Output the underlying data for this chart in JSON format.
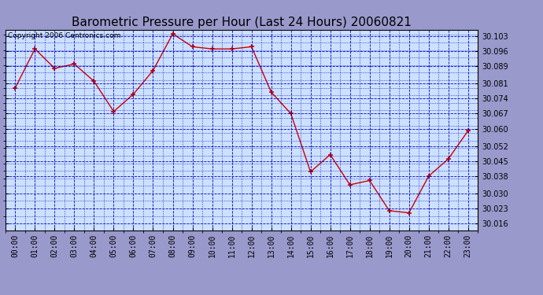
{
  "title": "Barometric Pressure per Hour (Last 24 Hours) 20060821",
  "copyright": "Copyright 2006 Centronics.com",
  "x_labels": [
    "00:00",
    "01:00",
    "02:00",
    "03:00",
    "04:00",
    "05:00",
    "06:00",
    "07:00",
    "08:00",
    "09:00",
    "10:00",
    "11:00",
    "12:00",
    "13:00",
    "14:00",
    "15:00",
    "16:00",
    "17:00",
    "18:00",
    "19:00",
    "20:00",
    "21:00",
    "22:00",
    "23:00"
  ],
  "y_values": [
    30.079,
    30.097,
    30.088,
    30.09,
    30.082,
    30.068,
    30.076,
    30.087,
    30.104,
    30.098,
    30.097,
    30.097,
    30.098,
    30.077,
    30.067,
    30.04,
    30.048,
    30.034,
    30.036,
    30.022,
    30.021,
    30.038,
    30.046,
    30.059
  ],
  "ylim_min": 30.013,
  "ylim_max": 30.106,
  "yticks": [
    30.016,
    30.023,
    30.03,
    30.038,
    30.045,
    30.052,
    30.06,
    30.067,
    30.074,
    30.081,
    30.089,
    30.096,
    30.103
  ],
  "line_color": "#cc0000",
  "marker_color": "#cc0000",
  "outer_bg_color": "#9999cc",
  "plot_bg_color": "#cce0ff",
  "grid_color": "#0000bb",
  "title_fontsize": 11,
  "tick_fontsize": 7,
  "copyright_fontsize": 6.5
}
